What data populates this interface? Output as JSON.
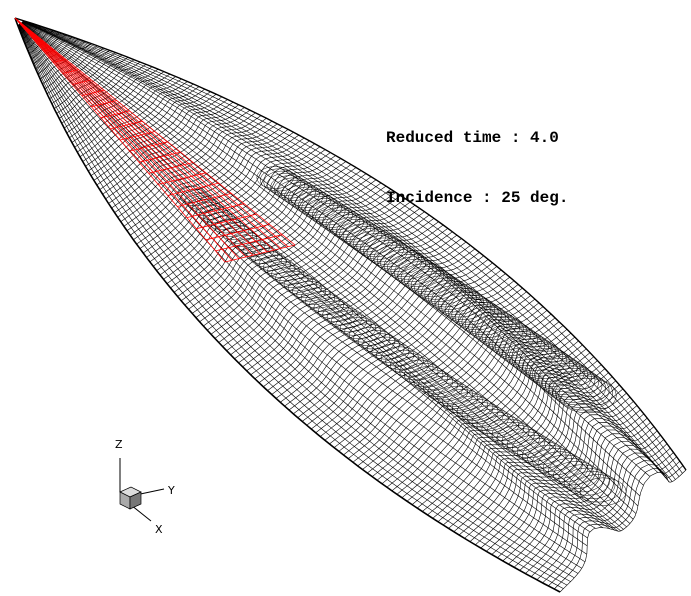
{
  "annotation": {
    "reduced_time": "Reduced time : 4.0",
    "incidence": "Incidence : 25 deg."
  },
  "axes_triad": {
    "z_label": "Z",
    "y_label": "Y",
    "x_label": "X"
  },
  "colors": {
    "wing_mesh": "#ff0000",
    "wake_mesh": "#000000",
    "background": "#ffffff"
  }
}
